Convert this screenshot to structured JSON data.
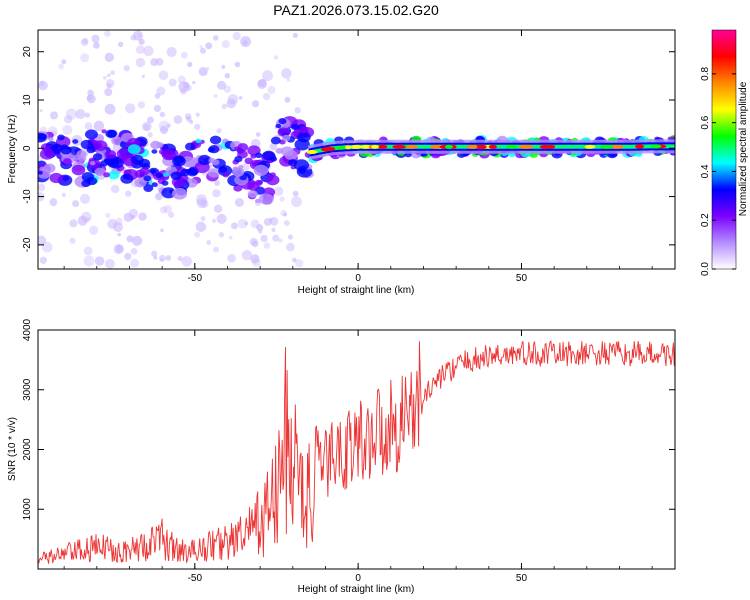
{
  "chart_data": [
    {
      "type": "heatmap",
      "title": "PAZ1.2026.073.15.02.G20",
      "xlabel": "Height of straight line (km)",
      "ylabel": "Frequency (Hz)",
      "xlim": [
        -98,
        97
      ],
      "ylim": [
        -25,
        24.5
      ],
      "xticks": [
        -50,
        0,
        50
      ],
      "xtick_labels": [
        "-50",
        "0",
        "50"
      ],
      "yticks": [
        -20,
        -10,
        0,
        10,
        20
      ],
      "ytick_labels": [
        "-20",
        "-10",
        "0",
        "10",
        "20"
      ],
      "colorbar": {
        "label": "Normalized spectral amplitude",
        "ticks": [
          0.0,
          0.2,
          0.4,
          0.6,
          0.8
        ],
        "tick_labels": [
          "0.0",
          "0.2",
          "0.4",
          "0.6",
          "0.8"
        ],
        "range": [
          0,
          0.98
        ],
        "colors": [
          "#ffffff",
          "#b58cff",
          "#7a00ff",
          "#0000ff",
          "#00ffff",
          "#00ff00",
          "#ffff00",
          "#ff8800",
          "#ff0000",
          "#ff0099"
        ]
      },
      "ridge": {
        "x": [
          -93,
          -85,
          -78,
          -70,
          -62,
          -55,
          -48,
          -40,
          -33,
          -28,
          -24,
          -20,
          -16,
          -12,
          -8,
          -4,
          0,
          10,
          20,
          30,
          40,
          50,
          60,
          70,
          80,
          90,
          97
        ],
        "y": [
          -2,
          -3,
          -1,
          -2,
          -4,
          -5,
          -3,
          -2,
          -5,
          -7,
          2,
          1,
          -1,
          -0.5,
          0,
          0.2,
          0.3,
          0.3,
          0.3,
          0.3,
          0.3,
          0.3,
          0.3,
          0.3,
          0.3,
          0.4,
          0.4
        ]
      }
    },
    {
      "type": "line",
      "xlabel": "Height of straight line (km)",
      "ylabel": "SNR (10 * v/v)",
      "xlim": [
        -98,
        97
      ],
      "ylim": [
        0,
        4000
      ],
      "xticks": [
        -50,
        0,
        50
      ],
      "xtick_labels": [
        "-50",
        "0",
        "50"
      ],
      "yticks": [
        1000,
        2000,
        3000,
        4000
      ],
      "ytick_labels": [
        "1000",
        "2000",
        "3000",
        "4000"
      ],
      "grid": false,
      "series": [
        {
          "color": "#ee3333",
          "x": [
            -98,
            -90,
            -85,
            -80,
            -75,
            -70,
            -65,
            -60,
            -55,
            -50,
            -45,
            -40,
            -35,
            -30,
            -25,
            -22,
            -20,
            -18,
            -15,
            -12,
            -10,
            -5,
            0,
            5,
            10,
            15,
            20,
            25,
            30,
            35,
            40,
            45,
            50,
            55,
            60,
            65,
            70,
            75,
            80,
            85,
            90,
            95,
            97
          ],
          "y": [
            150,
            250,
            300,
            350,
            350,
            300,
            400,
            500,
            300,
            300,
            400,
            450,
            550,
            800,
            1200,
            2200,
            1800,
            1400,
            1200,
            1500,
            1800,
            2000,
            2100,
            2300,
            2400,
            2600,
            2900,
            3200,
            3400,
            3500,
            3550,
            3600,
            3600,
            3600,
            3600,
            3600,
            3600,
            3600,
            3600,
            3600,
            3600,
            3600,
            3600
          ]
        }
      ]
    }
  ]
}
